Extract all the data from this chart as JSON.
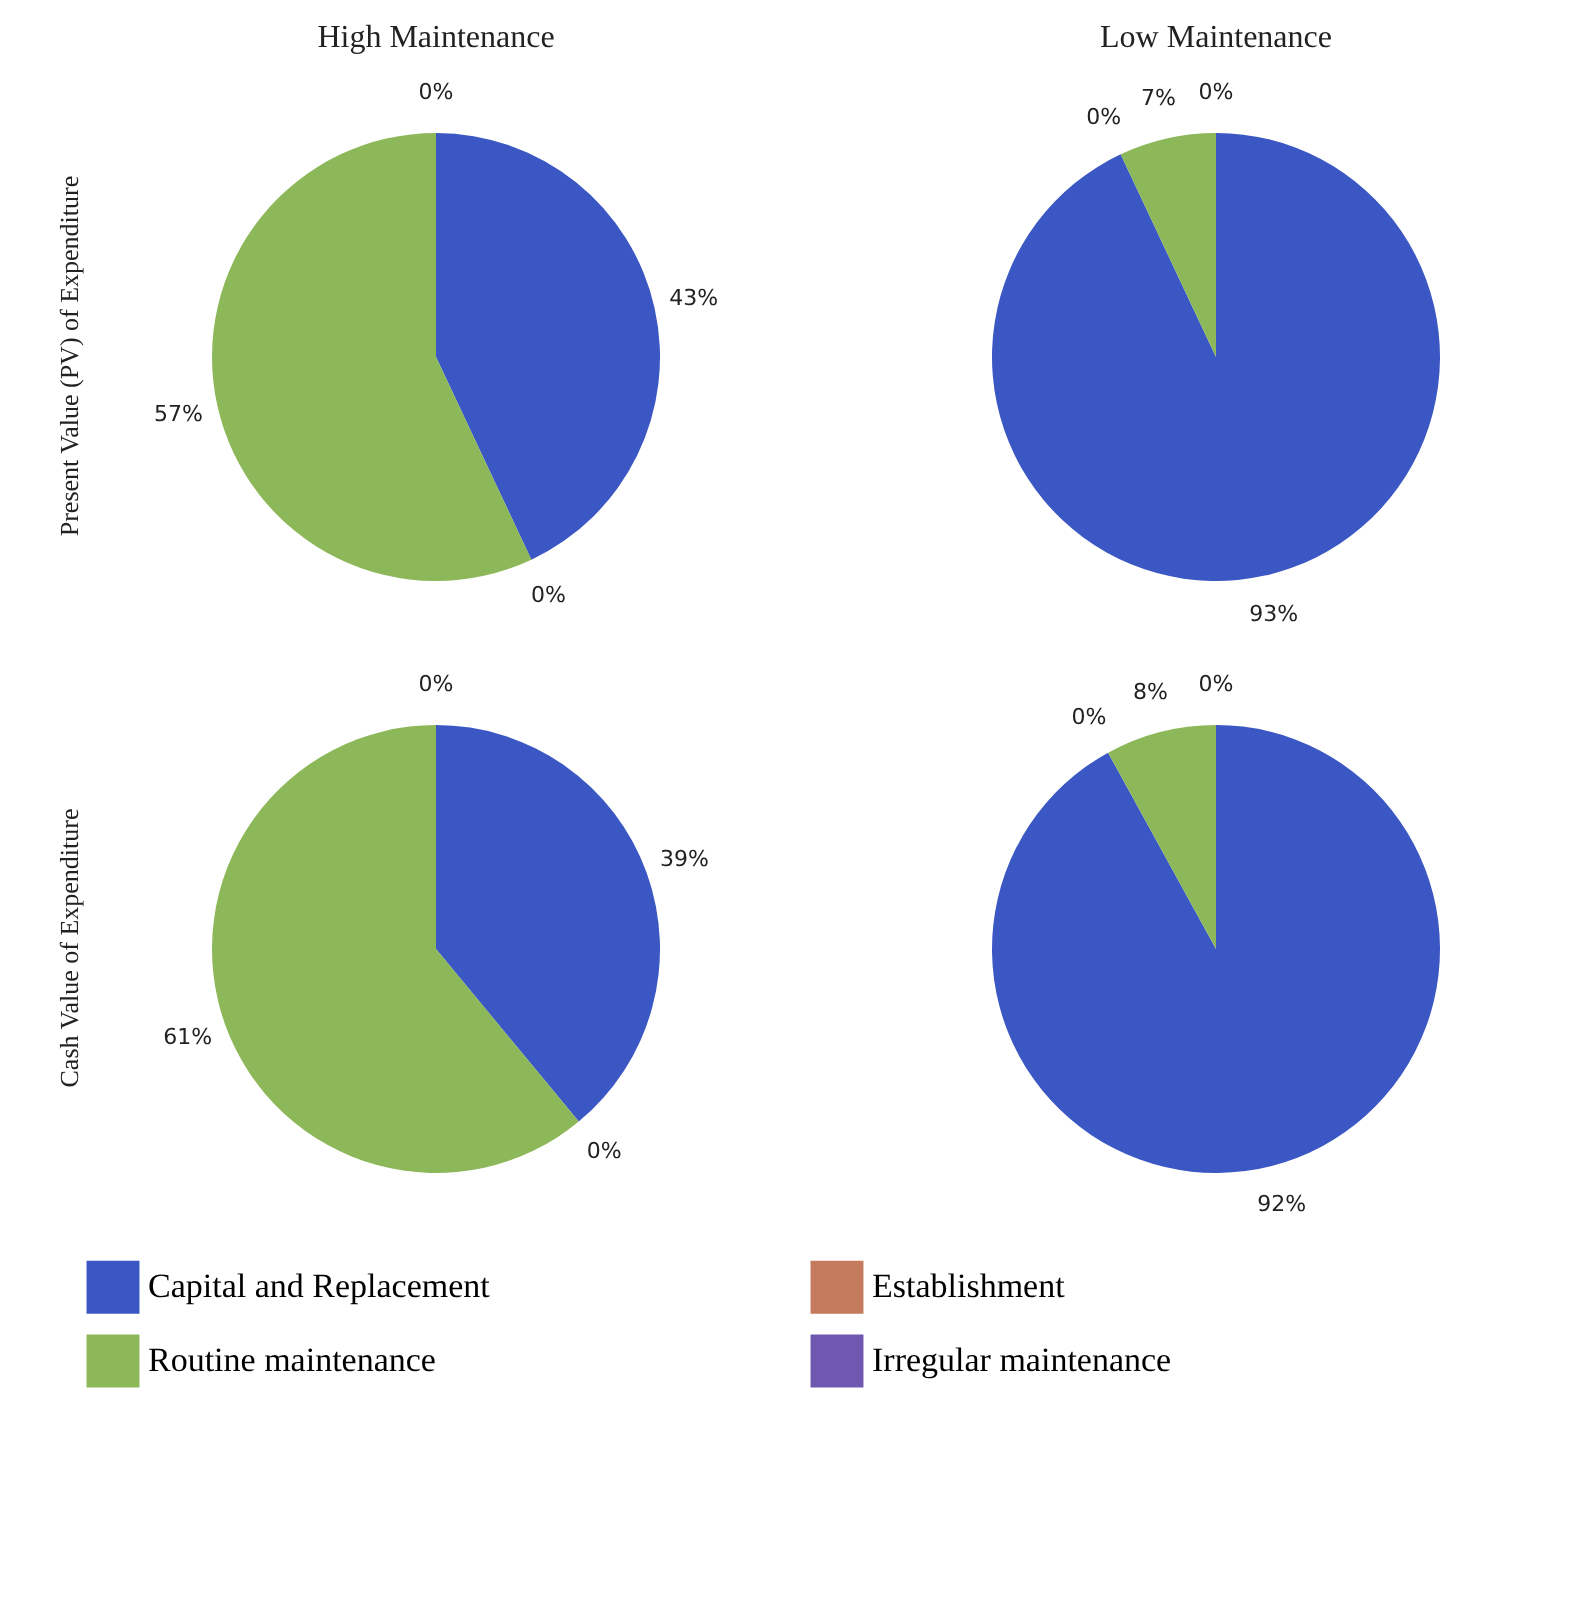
{
  "chart_data": [
    {
      "type": "pie",
      "title": "High Maintenance",
      "ylabel": "Present Value (PV)  of Expenditure",
      "categories": [
        "Capital and Replacement",
        "Establishment",
        "Routine maintenance",
        "Irregular maintenance"
      ],
      "values": [
        43,
        0,
        57,
        0
      ],
      "value_labels": [
        "43%",
        "0%",
        "57%",
        "0%"
      ],
      "colors": [
        "#3b57c4",
        "#c47a5c",
        "#8db85a",
        "#6f58b0"
      ],
      "legend": "bottom"
    },
    {
      "type": "pie",
      "title": "Low Maintenance",
      "categories": [
        null,
        null,
        null,
        null
      ],
      "values": [
        93,
        0,
        7,
        0
      ],
      "value_labels": [
        "93%",
        "0%",
        "7%",
        "0%"
      ],
      "colors": [
        "#3b57c4",
        "#c47a5c",
        "#8db85a",
        "#6f58b0"
      ]
    },
    {
      "type": "pie",
      "ylabel": "Cash Value  of Expenditure",
      "categories": [
        null,
        null,
        null,
        null
      ],
      "values": [
        39,
        0,
        61,
        0
      ],
      "value_labels": [
        "39%",
        "0%",
        "61%",
        "0%"
      ],
      "colors": [
        "#3b57c4",
        "#c47a5c",
        "#8db85a",
        "#6f58b0"
      ]
    },
    {
      "type": "pie",
      "categories": [
        null,
        null,
        null,
        null
      ],
      "values": [
        92,
        0,
        8,
        0
      ],
      "value_labels": [
        "92%",
        "0%",
        "8%",
        "0%"
      ],
      "colors": [
        "#3b57c4",
        "#c47a5c",
        "#8db85a",
        "#6f58b0"
      ]
    }
  ]
}
